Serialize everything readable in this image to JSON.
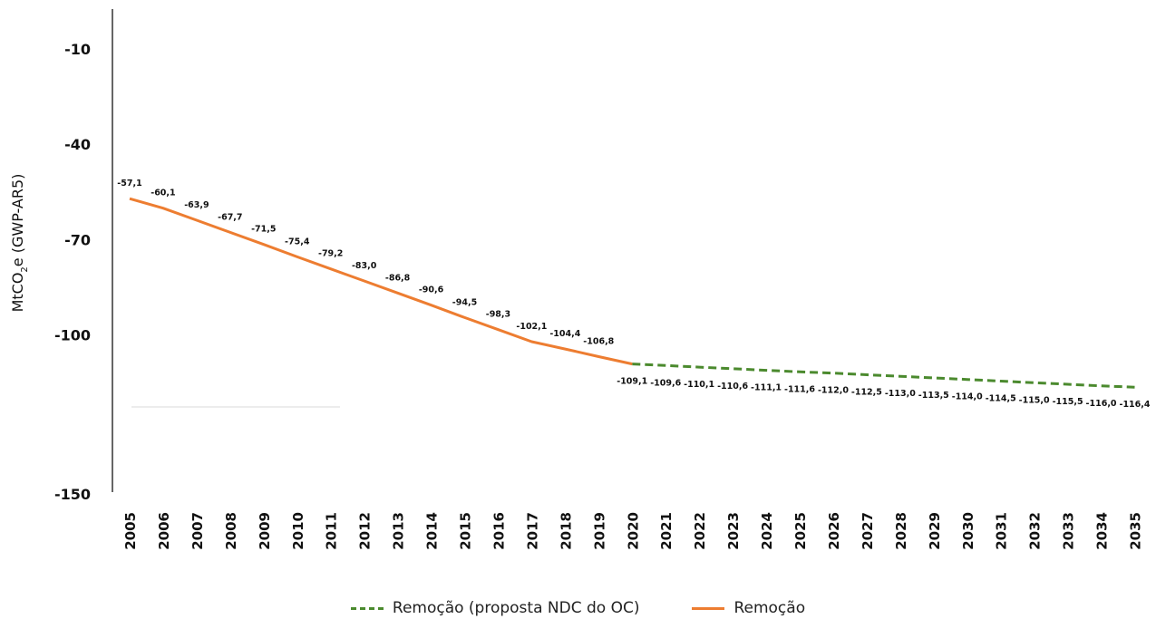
{
  "chart_data": {
    "type": "line",
    "ylabel": "MtCO",
    "ylabel_subscript": "2",
    "ylabel_suffix": "e (GWP-AR5)",
    "ylim": [
      -150,
      10
    ],
    "y_ticks": [
      "-10",
      "-40",
      "-70",
      "-100",
      "-150"
    ],
    "x": [
      "2005",
      "2006",
      "2007",
      "2008",
      "2009",
      "2010",
      "2011",
      "2012",
      "2013",
      "2014",
      "2015",
      "2016",
      "2017",
      "2018",
      "2019",
      "2020",
      "2021",
      "2022",
      "2023",
      "2024",
      "2025",
      "2026",
      "2027",
      "2028",
      "2029",
      "2030",
      "2031",
      "2032",
      "2033",
      "2034",
      "2035"
    ],
    "series": [
      {
        "name": "Remoção",
        "color": "#ed7d31",
        "style": "solid",
        "x": [
          "2005",
          "2006",
          "2007",
          "2008",
          "2009",
          "2010",
          "2011",
          "2012",
          "2013",
          "2014",
          "2015",
          "2016",
          "2017",
          "2018",
          "2019",
          "2020"
        ],
        "values": [
          -57.1,
          -60.1,
          -63.9,
          -67.7,
          -71.5,
          -75.4,
          -79.2,
          -83.0,
          -86.8,
          -90.6,
          -94.5,
          -98.3,
          -102.1,
          -104.4,
          -106.8,
          -109.1
        ],
        "labels": [
          "-57,1",
          "-60,1",
          "-63,9",
          "-67,7",
          "-71,5",
          "-75,4",
          "-79,2",
          "-83,0",
          "-86,8",
          "-90,6",
          "-94,5",
          "-98,3",
          "-102,1",
          "-104,4",
          "-106,8"
        ]
      },
      {
        "name": "Remoção (proposta NDC do OC)",
        "color": "#4b8a2e",
        "style": "dashed",
        "x": [
          "2020",
          "2021",
          "2022",
          "2023",
          "2024",
          "2025",
          "2026",
          "2027",
          "2028",
          "2029",
          "2030",
          "2031",
          "2032",
          "2033",
          "2034",
          "2035"
        ],
        "values": [
          -109.1,
          -109.6,
          -110.1,
          -110.6,
          -111.1,
          -111.6,
          -112.0,
          -112.5,
          -113.0,
          -113.5,
          -114.0,
          -114.5,
          -115.0,
          -115.5,
          -116.0,
          -116.4
        ],
        "labels": [
          "-109,1",
          "-109,6",
          "-110,1",
          "-110,6",
          "-111,1",
          "-111,6",
          "-112,0",
          "-112,5",
          "-113,0",
          "-113,5",
          "-114,0",
          "-114,5",
          "-115,0",
          "-115,5",
          "-116,0",
          "-116,4"
        ]
      }
    ],
    "legend": {
      "position": "bottom",
      "items": [
        {
          "label": "Remoção (proposta NDC do OC)",
          "color": "#4b8a2e",
          "style": "dashed"
        },
        {
          "label": "Remoção",
          "color": "#ed7d31",
          "style": "solid"
        }
      ]
    },
    "grid": false
  }
}
